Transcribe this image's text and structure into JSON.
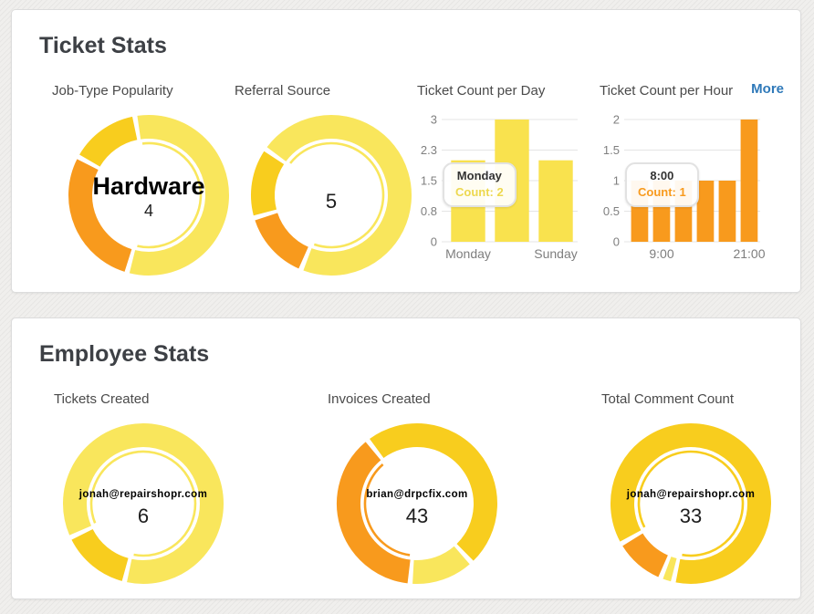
{
  "ticket_stats": {
    "title": "Ticket Stats",
    "more_label": "More"
  },
  "employee_stats": {
    "title": "Employee Stats"
  },
  "colors": {
    "pale_yellow": "#F9E65C",
    "gold": "#F8CD1E",
    "orange": "#F89A1D",
    "bar_yellow": "#F9E24E",
    "bar_orange": "#F89A1D",
    "link_blue": "#2F79B9",
    "gridline": "#E4E4E4"
  },
  "chart_data": [
    {
      "id": "job_type_popularity",
      "type": "pie",
      "donut": true,
      "title": "Job-Type Popularity",
      "start_deg": -10,
      "segments": [
        {
          "label": "Hardware",
          "value": 4,
          "color": "#F9E65C",
          "selected": true
        },
        {
          "label": "",
          "value": 2,
          "color": "#F89A1D",
          "selected": false
        },
        {
          "label": "",
          "value": 1,
          "color": "#F8CD1E",
          "selected": false
        }
      ],
      "center": {
        "label": "Hardware",
        "value": "4"
      }
    },
    {
      "id": "referral_source",
      "type": "pie",
      "donut": true,
      "title": "Referral Source",
      "start_deg": -55,
      "segments": [
        {
          "label": "",
          "value": 5,
          "color": "#F9E65C",
          "selected": true
        },
        {
          "label": "",
          "value": 1,
          "color": "#F89A1D",
          "selected": false
        },
        {
          "label": "",
          "value": 1,
          "color": "#F8CD1E",
          "selected": false
        }
      ],
      "center": {
        "label": "",
        "value": "5"
      }
    },
    {
      "id": "ticket_count_per_day",
      "type": "bar",
      "title": "Ticket Count per Day",
      "values": [
        2,
        3,
        2
      ],
      "bar_color": "#F9E24E",
      "ymax": 3,
      "ylim": [
        0,
        3
      ],
      "yticks": [
        "0",
        "0.8",
        "1.5",
        "2.3",
        "3"
      ],
      "grid": true,
      "x_labels_shown": [
        {
          "bar_index": 0,
          "text": "Monday"
        },
        {
          "bar_index": 2,
          "text": "Sunday"
        }
      ],
      "tooltip": {
        "label": "Monday",
        "count_text": "Count: 2",
        "count_color": "#EDD84F"
      }
    },
    {
      "id": "ticket_count_per_hour",
      "type": "bar",
      "title": "Ticket Count per Hour",
      "values": [
        1,
        1,
        1,
        1,
        1,
        2
      ],
      "bar_color": "#F89A1D",
      "ymax": 2,
      "ylim": [
        0,
        2
      ],
      "yticks": [
        "0",
        "0.5",
        "1",
        "1.5",
        "2"
      ],
      "grid": true,
      "x_labels_shown": [
        {
          "bar_index": 1,
          "text": "9:00"
        },
        {
          "bar_index": 5,
          "text": "21:00"
        }
      ],
      "tooltip": {
        "label": "8:00",
        "count_text": "Count: 1",
        "count_color": "#F89A1D"
      }
    },
    {
      "id": "tickets_created",
      "type": "pie",
      "donut": true,
      "title": "Tickets Created",
      "start_deg": 245,
      "segments": [
        {
          "label": "jonah@repairshopr.com",
          "value": 6,
          "color": "#F9E65C",
          "selected": true
        },
        {
          "label": "",
          "value": 1,
          "color": "#F8CD1E",
          "selected": false
        }
      ],
      "center": {
        "label": "jonah@repairshopr.com",
        "value": "6"
      }
    },
    {
      "id": "invoices_created",
      "type": "pie",
      "donut": true,
      "title": "Invoices Created",
      "start_deg": 185,
      "segments": [
        {
          "label": "brian@drpcfix.com",
          "value": 43,
          "color": "#F89A1D",
          "selected": true
        },
        {
          "label": "",
          "value": 55,
          "color": "#F8CD1E",
          "selected": false
        },
        {
          "label": "",
          "value": 15,
          "color": "#F9E65C",
          "selected": false
        }
      ],
      "center": {
        "label": "brian@drpcfix.com",
        "value": "43"
      }
    },
    {
      "id": "total_comment_count",
      "type": "pie",
      "donut": true,
      "title": "Total Comment Count",
      "start_deg": 240,
      "segments": [
        {
          "label": "jonah@repairshopr.com",
          "value": 33,
          "color": "#F8CD1E",
          "selected": true
        },
        {
          "label": "",
          "value": 1,
          "color": "#F9E65C",
          "selected": false
        },
        {
          "label": "",
          "value": 4,
          "color": "#F89A1D",
          "selected": false
        }
      ],
      "center": {
        "label": "jonah@repairshopr.com",
        "value": "33"
      }
    }
  ]
}
